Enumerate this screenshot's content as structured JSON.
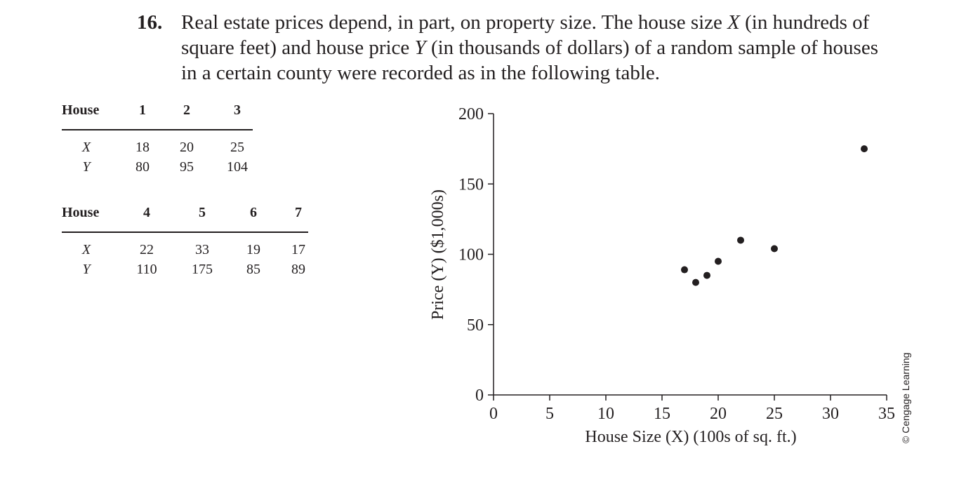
{
  "problem": {
    "number": "16.",
    "text_parts": [
      "Real estate prices depend, in part, on property size. The house size ",
      "X",
      " (in hundreds of square feet) and house price ",
      "Y",
      " (in thousands of dollars) of a random sample of houses in a certain county were recorded as in the following table."
    ]
  },
  "tables": [
    {
      "header_label": "House",
      "houses": [
        "1",
        "2",
        "3"
      ],
      "row_labels": [
        "X",
        "Y"
      ],
      "x_values": [
        "18",
        "20",
        "25"
      ],
      "y_values": [
        "80",
        "95",
        "104"
      ]
    },
    {
      "header_label": "House",
      "houses": [
        "4",
        "5",
        "6",
        "7"
      ],
      "row_labels": [
        "X",
        "Y"
      ],
      "x_values": [
        "22",
        "33",
        "19",
        "17"
      ],
      "y_values": [
        "110",
        "175",
        "85",
        "89"
      ]
    }
  ],
  "chart_data": {
    "type": "scatter",
    "title": "",
    "xlabel": "House Size (X) (100s of sq. ft.)",
    "ylabel": "Price (Y) ($1,000s)",
    "xlim": [
      0,
      35
    ],
    "ylim": [
      0,
      200
    ],
    "xticks": [
      0,
      5,
      10,
      15,
      20,
      25,
      30,
      35
    ],
    "yticks": [
      0,
      50,
      100,
      150,
      200
    ],
    "grid": false,
    "points": [
      {
        "x": 18,
        "y": 80
      },
      {
        "x": 20,
        "y": 95
      },
      {
        "x": 25,
        "y": 104
      },
      {
        "x": 22,
        "y": 110
      },
      {
        "x": 33,
        "y": 175
      },
      {
        "x": 19,
        "y": 85
      },
      {
        "x": 17,
        "y": 89
      }
    ]
  },
  "credit": "© Cengage Learning"
}
